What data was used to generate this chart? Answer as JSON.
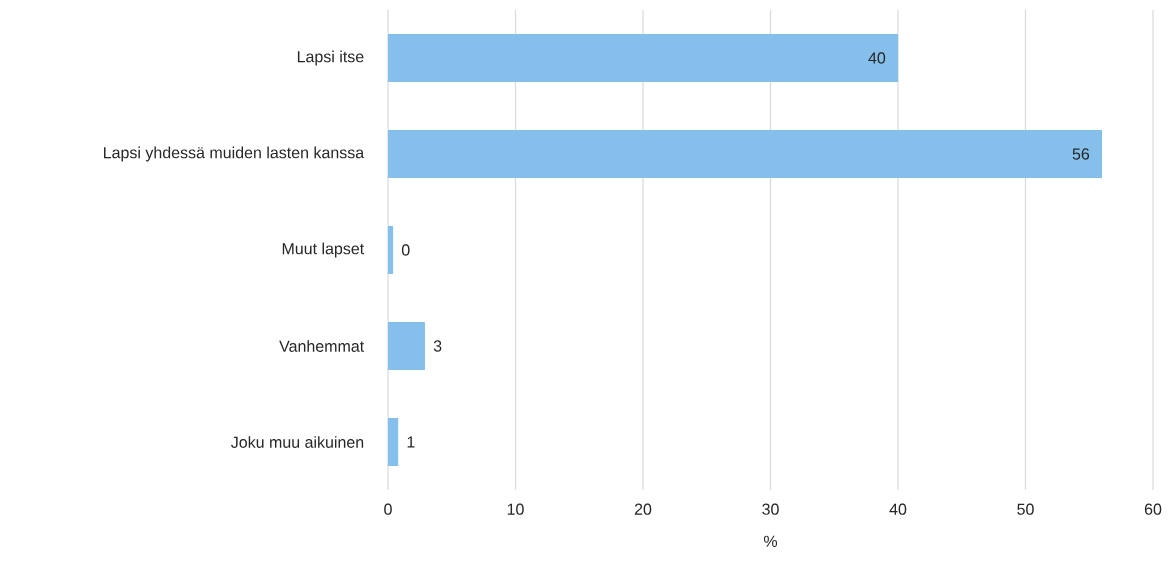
{
  "chart_data": {
    "type": "bar",
    "orientation": "horizontal",
    "categories": [
      "Lapsi itse",
      "Lapsi yhdessä muiden lasten kanssa",
      "Muut lapset",
      "Vanhemmat",
      "Joku muu aikuinen"
    ],
    "values": [
      40,
      56,
      0.4,
      2.9,
      0.8
    ],
    "value_labels": [
      "40",
      "56",
      "0",
      "3",
      "1"
    ],
    "color": "#85c0ec",
    "xlabel": "%",
    "xlim": [
      0,
      60
    ],
    "xticks": [
      0,
      10,
      20,
      30,
      40,
      50,
      60
    ],
    "grid": "x"
  }
}
